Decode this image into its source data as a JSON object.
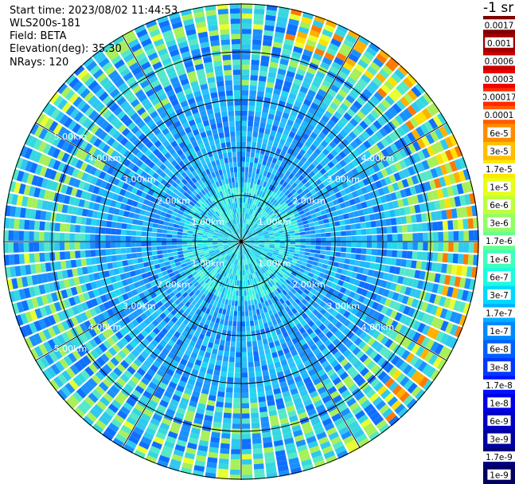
{
  "header": {
    "start_time": "Start time: 2023/08/02 11:44:53",
    "instrument": "WLS200s-181",
    "field": "Field: BETA",
    "elevation": "Elevation(deg): 35.30",
    "nrays": "NRays: 120"
  },
  "colorbar": {
    "title": "-1 sr",
    "labels": [
      "0.0017",
      "0.001",
      "0.0006",
      "0.0003",
      "0.00017",
      "0.0001",
      "6e-5",
      "3e-5",
      "1.7e-5",
      "1e-5",
      "6e-6",
      "3e-6",
      "1.7e-6",
      "1e-6",
      "6e-7",
      "3e-7",
      "1.7e-7",
      "1e-7",
      "6e-8",
      "3e-8",
      "1.7e-8",
      "1e-8",
      "6e-9",
      "3e-9",
      "1.7e-9",
      "1e-9"
    ],
    "colors": [
      "#7f0000",
      "#a00000",
      "#c80000",
      "#ee0000",
      "#ff2a00",
      "#ff5c00",
      "#ff8c00",
      "#ffbe00",
      "#ffe800",
      "#e6ff16",
      "#bcff3e",
      "#92ff66",
      "#66ff90",
      "#40ffb8",
      "#1afbe0",
      "#00d9ff",
      "#00b0ff",
      "#0088ff",
      "#0060ff",
      "#0038ff",
      "#0010ff",
      "#0000e8",
      "#0000c4",
      "#0000a0",
      "#00007f",
      "#000060"
    ]
  },
  "rings": {
    "labels": [
      "1.00km",
      "2.00km",
      "3.00km",
      "4.00km",
      "5.00km"
    ]
  }
}
